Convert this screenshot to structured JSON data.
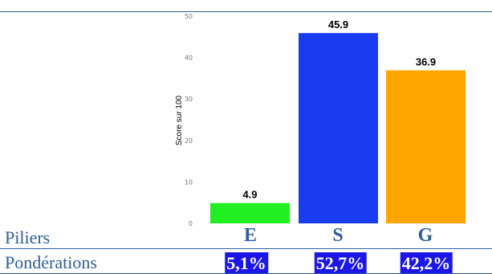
{
  "chart_data": {
    "type": "bar",
    "categories": [
      "E",
      "S",
      "G"
    ],
    "values": [
      4.9,
      45.9,
      36.9
    ],
    "colors": [
      "#22ee22",
      "#1a3cf0",
      "#ffa500"
    ],
    "ylabel": "Score sur 100",
    "ylim": [
      0,
      50
    ],
    "yticks": [
      0,
      10,
      20,
      30,
      40,
      50
    ],
    "grid": false,
    "data_labels": [
      "4.9",
      "45.9",
      "36.9"
    ]
  },
  "table": {
    "piliers_label": "Piliers",
    "ponderations_label": "Pondérations",
    "piliers": [
      "E",
      "S",
      "G"
    ],
    "ponderations": [
      "5,1%",
      "52,7%",
      "42,2%"
    ]
  }
}
